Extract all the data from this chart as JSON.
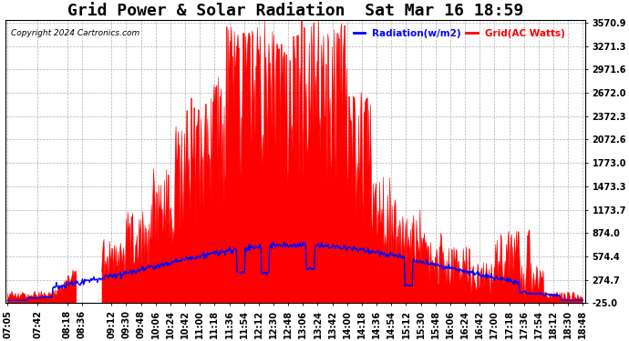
{
  "title": "Grid Power & Solar Radiation  Sat Mar 16 18:59",
  "copyright": "Copyright 2024 Cartronics.com",
  "legend_radiation": "Radiation(w/m2)",
  "legend_grid": "Grid(AC Watts)",
  "radiation_color": "blue",
  "grid_color": "red",
  "yticks": [
    -25.0,
    274.7,
    574.4,
    874.0,
    1173.7,
    1473.3,
    1773.0,
    2072.6,
    2372.3,
    2672.0,
    2971.6,
    3271.3,
    3570.9
  ],
  "ylim_min": -25.0,
  "ylim_max": 3570.9,
  "background_color": "#ffffff",
  "xtick_labels": [
    "07:05",
    "07:42",
    "08:18",
    "08:36",
    "09:12",
    "09:30",
    "09:48",
    "10:06",
    "10:24",
    "10:42",
    "11:00",
    "11:18",
    "11:36",
    "11:54",
    "12:12",
    "12:30",
    "12:48",
    "13:06",
    "13:24",
    "13:42",
    "14:00",
    "14:18",
    "14:36",
    "14:54",
    "15:12",
    "15:30",
    "15:48",
    "16:06",
    "16:24",
    "16:42",
    "17:00",
    "17:18",
    "17:36",
    "17:54",
    "18:12",
    "18:30",
    "18:48"
  ],
  "title_fontsize": 13,
  "tick_fontsize": 7,
  "figwidth": 6.9,
  "figheight": 3.75,
  "dpi": 100
}
